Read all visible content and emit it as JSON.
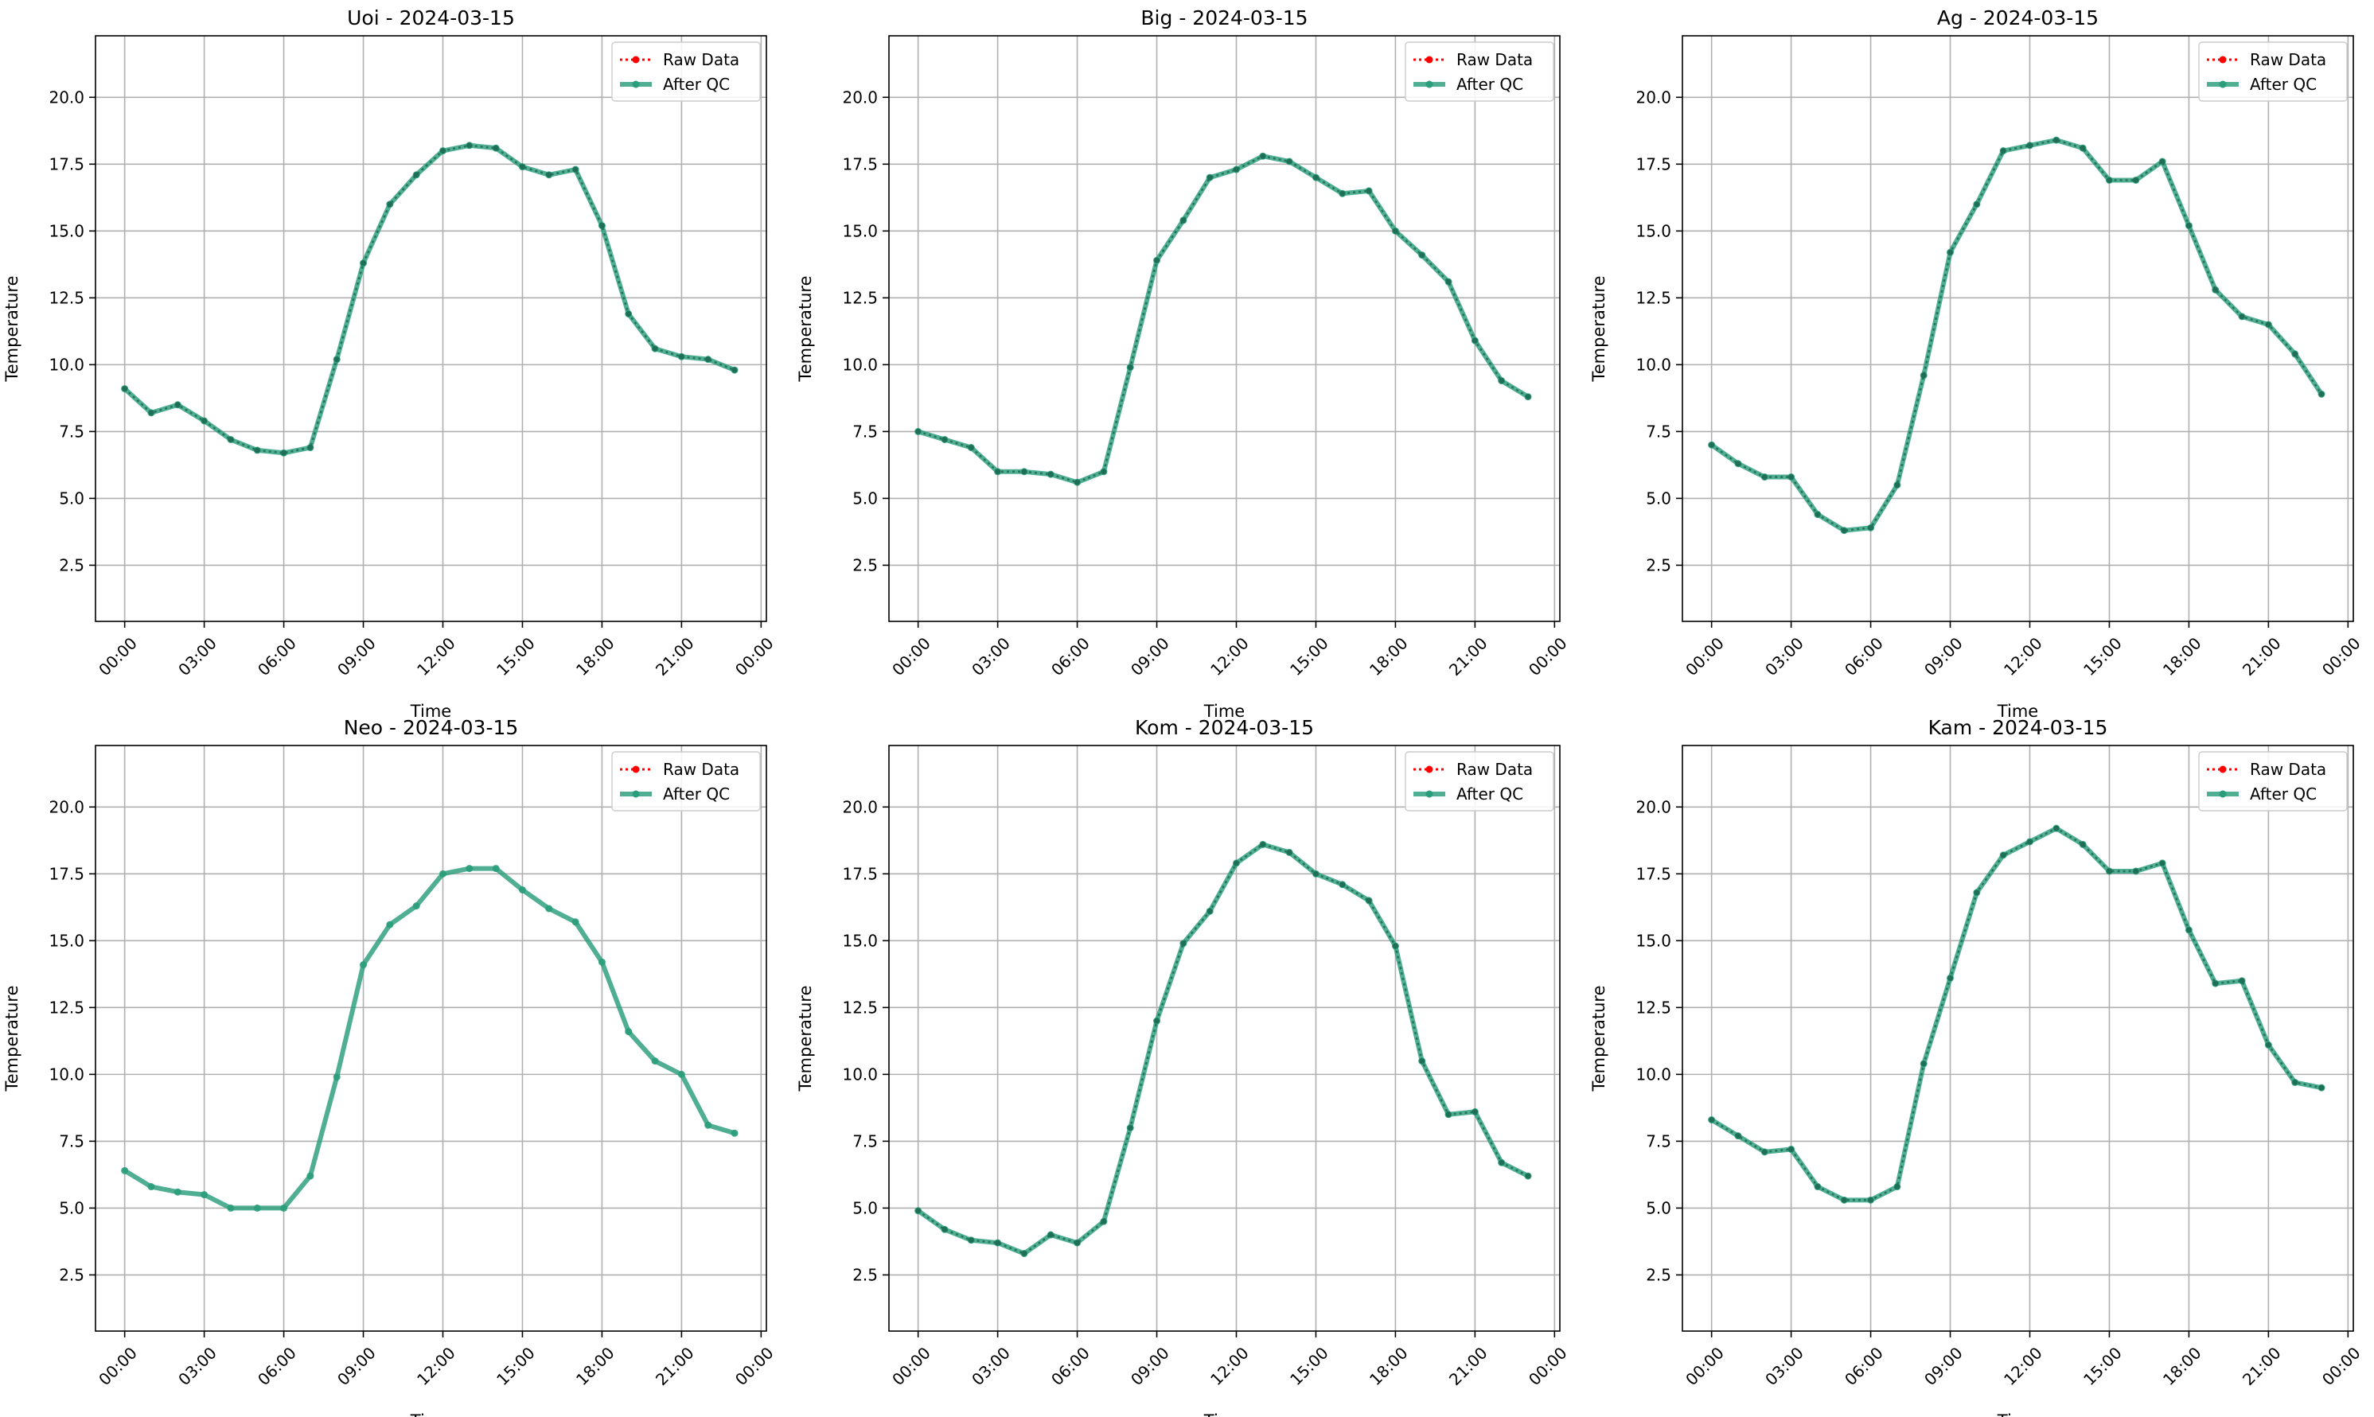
{
  "legend_labels": {
    "raw": "Raw Data",
    "qc": "After QC"
  },
  "colors": {
    "raw": "#ff0000",
    "qc": "#2a9d7a",
    "marker": "#1f6f57",
    "grid": "#b0b0b0",
    "axis": "#000000"
  },
  "chart_data": [
    {
      "type": "line",
      "title": "Uoi - 2024-03-15",
      "xlabel": "Time",
      "ylabel": "Temperature",
      "x_ticks": [
        "00:00",
        "03:00",
        "06:00",
        "09:00",
        "12:00",
        "15:00",
        "18:00",
        "21:00",
        "00:00"
      ],
      "y_ticks": [
        "2.5",
        "5.0",
        "7.5",
        "10.0",
        "12.5",
        "15.0",
        "17.5",
        "20.0"
      ],
      "ylim": [
        0.4,
        22.3
      ],
      "xlim_hours": [
        -1.1,
        24.2
      ],
      "grid": true,
      "legend": "top-right",
      "raw_visible": true,
      "x_hours": [
        0,
        1,
        2,
        3,
        4,
        5,
        6,
        7,
        8,
        9,
        10,
        11,
        12,
        13,
        14,
        15,
        16,
        17,
        18,
        19,
        20,
        21,
        22,
        23
      ],
      "series": [
        {
          "name": "Raw Data",
          "values": [
            9.1,
            8.2,
            8.5,
            7.9,
            7.2,
            6.8,
            6.7,
            6.9,
            10.2,
            13.8,
            16.0,
            17.1,
            18.0,
            18.2,
            18.1,
            17.4,
            17.1,
            17.3,
            15.2,
            11.9,
            10.6,
            10.3,
            10.2,
            9.8
          ]
        },
        {
          "name": "After QC",
          "values": [
            9.1,
            8.2,
            8.5,
            7.9,
            7.2,
            6.8,
            6.7,
            6.9,
            10.2,
            13.8,
            16.0,
            17.1,
            18.0,
            18.2,
            18.1,
            17.4,
            17.1,
            17.3,
            15.2,
            11.9,
            10.6,
            10.3,
            10.2,
            9.8
          ]
        }
      ]
    },
    {
      "type": "line",
      "title": "Big - 2024-03-15",
      "xlabel": "Time",
      "ylabel": "Temperature",
      "x_ticks": [
        "00:00",
        "03:00",
        "06:00",
        "09:00",
        "12:00",
        "15:00",
        "18:00",
        "21:00",
        "00:00"
      ],
      "y_ticks": [
        "2.5",
        "5.0",
        "7.5",
        "10.0",
        "12.5",
        "15.0",
        "17.5",
        "20.0"
      ],
      "ylim": [
        0.4,
        22.3
      ],
      "xlim_hours": [
        -1.1,
        24.2
      ],
      "grid": true,
      "legend": "top-right",
      "raw_visible": true,
      "x_hours": [
        0,
        1,
        2,
        3,
        4,
        5,
        6,
        7,
        8,
        9,
        10,
        11,
        12,
        13,
        14,
        15,
        16,
        17,
        18,
        19,
        20,
        21,
        22,
        23
      ],
      "series": [
        {
          "name": "Raw Data",
          "values": [
            7.5,
            7.2,
            6.9,
            6.0,
            6.0,
            5.9,
            5.6,
            6.0,
            9.9,
            13.9,
            15.4,
            17.0,
            17.3,
            17.8,
            17.6,
            17.0,
            16.4,
            16.5,
            15.0,
            14.1,
            13.1,
            10.9,
            9.4,
            8.8
          ]
        },
        {
          "name": "After QC",
          "values": [
            7.5,
            7.2,
            6.9,
            6.0,
            6.0,
            5.9,
            5.6,
            6.0,
            9.9,
            13.9,
            15.4,
            17.0,
            17.3,
            17.8,
            17.6,
            17.0,
            16.4,
            16.5,
            15.0,
            14.1,
            13.1,
            10.9,
            9.4,
            8.8
          ]
        }
      ]
    },
    {
      "type": "line",
      "title": "Ag - 2024-03-15",
      "xlabel": "Time",
      "ylabel": "Temperature",
      "x_ticks": [
        "00:00",
        "03:00",
        "06:00",
        "09:00",
        "12:00",
        "15:00",
        "18:00",
        "21:00",
        "00:00"
      ],
      "y_ticks": [
        "2.5",
        "5.0",
        "7.5",
        "10.0",
        "12.5",
        "15.0",
        "17.5",
        "20.0"
      ],
      "ylim": [
        0.4,
        22.3
      ],
      "xlim_hours": [
        -1.1,
        24.2
      ],
      "grid": true,
      "legend": "top-right",
      "raw_visible": true,
      "x_hours": [
        0,
        1,
        2,
        3,
        4,
        5,
        6,
        7,
        8,
        9,
        10,
        11,
        12,
        13,
        14,
        15,
        16,
        17,
        18,
        19,
        20,
        21,
        22,
        23
      ],
      "series": [
        {
          "name": "Raw Data",
          "values": [
            7.0,
            6.3,
            5.8,
            5.8,
            4.4,
            3.8,
            3.9,
            5.5,
            9.6,
            14.2,
            16.0,
            18.0,
            18.2,
            18.4,
            18.1,
            16.9,
            16.9,
            17.6,
            15.2,
            12.8,
            11.8,
            11.5,
            10.4,
            8.9
          ]
        },
        {
          "name": "After QC",
          "values": [
            7.0,
            6.3,
            5.8,
            5.8,
            4.4,
            3.8,
            3.9,
            5.5,
            9.6,
            14.2,
            16.0,
            18.0,
            18.2,
            18.4,
            18.1,
            16.9,
            16.9,
            17.6,
            15.2,
            12.8,
            11.8,
            11.5,
            10.4,
            8.9
          ]
        }
      ]
    },
    {
      "type": "line",
      "title": "Neo - 2024-03-15",
      "xlabel": "Time",
      "ylabel": "Temperature",
      "x_ticks": [
        "00:00",
        "03:00",
        "06:00",
        "09:00",
        "12:00",
        "15:00",
        "18:00",
        "21:00",
        "00:00"
      ],
      "y_ticks": [
        "2.5",
        "5.0",
        "7.5",
        "10.0",
        "12.5",
        "15.0",
        "17.5",
        "20.0"
      ],
      "ylim": [
        0.4,
        22.3
      ],
      "xlim_hours": [
        -1.1,
        24.2
      ],
      "grid": true,
      "legend": "top-right",
      "raw_visible": false,
      "x_hours": [
        0,
        1,
        2,
        3,
        4,
        5,
        6,
        7,
        8,
        9,
        10,
        11,
        12,
        13,
        14,
        15,
        16,
        17,
        18,
        19,
        20,
        21,
        22,
        23
      ],
      "series": [
        {
          "name": "Raw Data",
          "values": [
            6.4,
            5.8,
            5.6,
            5.5,
            5.0,
            5.0,
            5.0,
            6.2,
            9.9,
            14.1,
            15.6,
            16.3,
            17.5,
            17.7,
            17.7,
            16.9,
            16.2,
            15.7,
            14.2,
            11.6,
            10.5,
            10.0,
            8.1,
            7.8
          ]
        },
        {
          "name": "After QC",
          "values": [
            6.4,
            5.8,
            5.6,
            5.5,
            5.0,
            5.0,
            5.0,
            6.2,
            9.9,
            14.1,
            15.6,
            16.3,
            17.5,
            17.7,
            17.7,
            16.9,
            16.2,
            15.7,
            14.2,
            11.6,
            10.5,
            10.0,
            8.1,
            7.8
          ]
        }
      ]
    },
    {
      "type": "line",
      "title": "Kom - 2024-03-15",
      "xlabel": "Time",
      "ylabel": "Temperature",
      "x_ticks": [
        "00:00",
        "03:00",
        "06:00",
        "09:00",
        "12:00",
        "15:00",
        "18:00",
        "21:00",
        "00:00"
      ],
      "y_ticks": [
        "2.5",
        "5.0",
        "7.5",
        "10.0",
        "12.5",
        "15.0",
        "17.5",
        "20.0"
      ],
      "ylim": [
        0.4,
        22.3
      ],
      "xlim_hours": [
        -1.1,
        24.2
      ],
      "grid": true,
      "legend": "top-right",
      "raw_visible": true,
      "x_hours": [
        0,
        1,
        2,
        3,
        4,
        5,
        6,
        7,
        8,
        9,
        10,
        11,
        12,
        13,
        14,
        15,
        16,
        17,
        18,
        19,
        20,
        21,
        22,
        23
      ],
      "series": [
        {
          "name": "Raw Data",
          "values": [
            4.9,
            4.2,
            3.8,
            3.7,
            3.3,
            4.0,
            3.7,
            4.5,
            8.0,
            12.0,
            14.9,
            16.1,
            17.9,
            18.6,
            18.3,
            17.5,
            17.1,
            16.5,
            14.8,
            10.5,
            8.5,
            8.6,
            6.7,
            6.2
          ]
        },
        {
          "name": "After QC",
          "values": [
            4.9,
            4.2,
            3.8,
            3.7,
            3.3,
            4.0,
            3.7,
            4.5,
            8.0,
            12.0,
            14.9,
            16.1,
            17.9,
            18.6,
            18.3,
            17.5,
            17.1,
            16.5,
            14.8,
            10.5,
            8.5,
            8.6,
            6.7,
            6.2
          ]
        }
      ]
    },
    {
      "type": "line",
      "title": "Kam - 2024-03-15",
      "xlabel": "Time",
      "ylabel": "Temperature",
      "x_ticks": [
        "00:00",
        "03:00",
        "06:00",
        "09:00",
        "12:00",
        "15:00",
        "18:00",
        "21:00",
        "00:00"
      ],
      "y_ticks": [
        "2.5",
        "5.0",
        "7.5",
        "10.0",
        "12.5",
        "15.0",
        "17.5",
        "20.0"
      ],
      "ylim": [
        0.4,
        22.3
      ],
      "xlim_hours": [
        -1.1,
        24.2
      ],
      "grid": true,
      "legend": "top-right",
      "raw_visible": true,
      "x_hours": [
        0,
        1,
        2,
        3,
        4,
        5,
        6,
        7,
        8,
        9,
        10,
        11,
        12,
        13,
        14,
        15,
        16,
        17,
        18,
        19,
        20,
        21,
        22,
        23
      ],
      "series": [
        {
          "name": "Raw Data",
          "values": [
            8.3,
            7.7,
            7.1,
            7.2,
            5.8,
            5.3,
            5.3,
            5.8,
            10.4,
            13.6,
            16.8,
            18.2,
            18.7,
            19.2,
            18.6,
            17.6,
            17.6,
            17.9,
            15.4,
            13.4,
            13.5,
            11.1,
            9.7,
            9.5
          ]
        },
        {
          "name": "After QC",
          "values": [
            8.3,
            7.7,
            7.1,
            7.2,
            5.8,
            5.3,
            5.3,
            5.8,
            10.4,
            13.6,
            16.8,
            18.2,
            18.7,
            19.2,
            18.6,
            17.6,
            17.6,
            17.9,
            15.4,
            13.4,
            13.5,
            11.1,
            9.7,
            9.5
          ]
        }
      ]
    }
  ]
}
